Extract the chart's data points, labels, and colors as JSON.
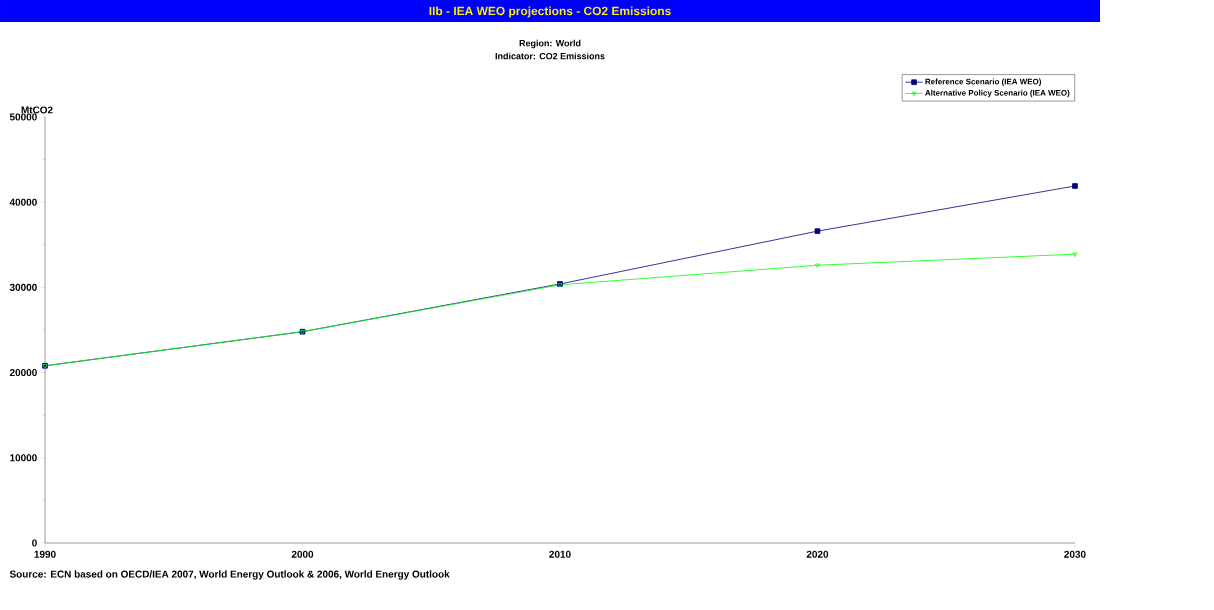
{
  "chart_data": {
    "type": "line",
    "title": "IIb - IEA WEO projections - CO2 Emissions",
    "subtitle": "Region: World",
    "ylabel": "MtCO2",
    "annotations": [
      "Indicator: CO2 Emissions",
      "Source: ECN based on OECD/IEA 2007, World Energy Outlook & 2006, World Energy Outlook"
    ],
    "x": [
      1990,
      2000,
      2010,
      2020,
      2030
    ],
    "series": [
      {
        "name": "Reference Scenario (IEA WEO)",
        "color": "#000080",
        "marker": "square",
        "values": [
          20800,
          24800,
          30400,
          36600,
          41900
        ]
      },
      {
        "name": "Alternative Policy Scenario (IEA WEO)",
        "color": "#00ff00",
        "marker": "triangle",
        "values": [
          20800,
          24800,
          30300,
          32600,
          33900
        ]
      }
    ],
    "xlim": [
      1990,
      2030
    ],
    "xticks": [
      1990,
      2000,
      2010,
      2020,
      2030
    ],
    "ylim": [
      0,
      50000
    ],
    "yticks": [
      0,
      10000,
      20000,
      30000,
      40000,
      50000
    ],
    "grid": false,
    "legend": "top right",
    "line_style": "solid"
  }
}
